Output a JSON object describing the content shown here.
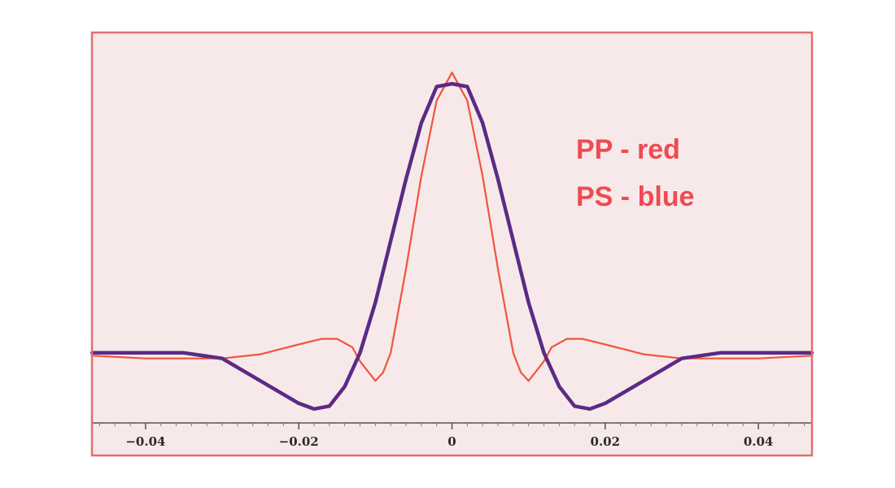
{
  "chart_data": {
    "type": "line",
    "title": "",
    "xlabel": "",
    "ylabel": "",
    "xlim": [
      -0.047,
      0.047
    ],
    "ylim": [
      -0.25,
      1.05
    ],
    "xticks": [
      -0.04,
      -0.02,
      0,
      0.02,
      0.04
    ],
    "xtick_labels": [
      "−0.04",
      "−0.02",
      "0",
      "0.02",
      "0.04"
    ],
    "grid": false,
    "legend_position": "top-right",
    "legend": [
      "PP - red",
      "PS - blue"
    ],
    "colors": {
      "plot_background": "#f7e9e9",
      "frame": "#e07070",
      "PP": "#f0553c",
      "PS": "#5b2a86",
      "legend_text": "#f04a52"
    },
    "series": [
      {
        "name": "PP",
        "color": "#f0553c",
        "x": [
          -0.047,
          -0.04,
          -0.03,
          -0.025,
          -0.02,
          -0.017,
          -0.015,
          -0.013,
          -0.012,
          -0.01,
          -0.009,
          -0.008,
          -0.006,
          -0.004,
          -0.002,
          0,
          0.002,
          0.004,
          0.006,
          0.008,
          0.009,
          0.01,
          0.012,
          0.013,
          0.015,
          0.017,
          0.02,
          0.025,
          0.03,
          0.04,
          0.047
        ],
        "y": [
          -0.01,
          -0.02,
          -0.02,
          -0.005,
          0.03,
          0.05,
          0.05,
          0.02,
          -0.03,
          -0.1,
          -0.07,
          0.0,
          0.3,
          0.63,
          0.9,
          1.0,
          0.9,
          0.63,
          0.3,
          0.0,
          -0.07,
          -0.1,
          -0.03,
          0.02,
          0.05,
          0.05,
          0.03,
          -0.005,
          -0.02,
          -0.02,
          -0.01
        ]
      },
      {
        "name": "PS",
        "color": "#5b2a86",
        "x": [
          -0.047,
          -0.04,
          -0.035,
          -0.03,
          -0.025,
          -0.02,
          -0.018,
          -0.016,
          -0.014,
          -0.012,
          -0.01,
          -0.008,
          -0.006,
          -0.004,
          -0.002,
          0,
          0.002,
          0.004,
          0.006,
          0.008,
          0.01,
          0.012,
          0.014,
          0.016,
          0.018,
          0.02,
          0.025,
          0.03,
          0.035,
          0.04,
          0.047
        ],
        "y": [
          0.0,
          0.0,
          0.0,
          -0.02,
          -0.1,
          -0.18,
          -0.2,
          -0.19,
          -0.12,
          0.0,
          0.18,
          0.4,
          0.62,
          0.82,
          0.95,
          0.96,
          0.95,
          0.82,
          0.62,
          0.4,
          0.18,
          0.0,
          -0.12,
          -0.19,
          -0.2,
          -0.18,
          -0.1,
          -0.02,
          0.0,
          0.0,
          0.0
        ]
      }
    ]
  }
}
